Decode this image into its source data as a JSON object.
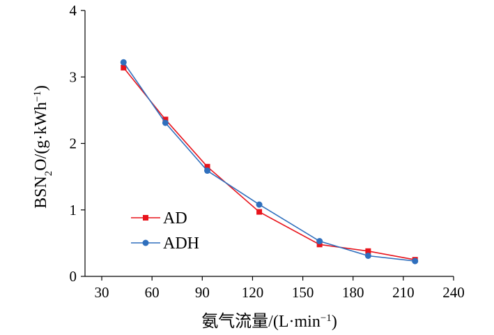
{
  "chart_data": {
    "type": "line",
    "x_label_prefix": "氨气流量/(L·min",
    "x_label_sup": "−1",
    "x_label_suffix": ")",
    "y_label_parts": {
      "a": "BSN",
      "sub": "2",
      "b": "O/(g·kWh",
      "sup": "−1",
      "c": ")"
    },
    "xlim": [
      20,
      240
    ],
    "ylim": [
      0,
      4
    ],
    "x_ticks": [
      30,
      60,
      90,
      120,
      150,
      180,
      210,
      240
    ],
    "y_ticks": [
      0,
      1,
      2,
      3,
      4
    ],
    "legend_position": "center-left",
    "series": [
      {
        "name": "AD",
        "color": "#e8141c",
        "marker": "square",
        "x": [
          43,
          68,
          93,
          124,
          160,
          189,
          217
        ],
        "y": [
          3.14,
          2.36,
          1.65,
          0.97,
          0.48,
          0.38,
          0.25
        ]
      },
      {
        "name": "ADH",
        "color": "#2f6fbd",
        "marker": "circle",
        "x": [
          43,
          68,
          93,
          124,
          160,
          189,
          217
        ],
        "y": [
          3.22,
          2.31,
          1.59,
          1.08,
          0.53,
          0.31,
          0.23
        ]
      }
    ]
  }
}
